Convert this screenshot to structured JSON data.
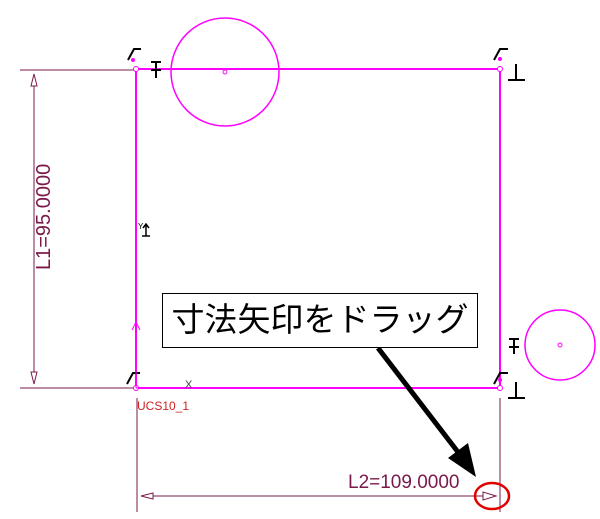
{
  "dimensions": {
    "l1_label": "L1=95.0000",
    "l2_label": "L2=109.0000"
  },
  "ucs_label": "UCS10_1",
  "axis_labels": {
    "x": "X",
    "y": "Y"
  },
  "callout_text": "寸法矢印をドラッグ",
  "colors": {
    "sketch": "#ff00ff",
    "dimension": "#7a1a4a",
    "ucs": "#cc2222",
    "highlight": "#e00000",
    "arrow": "#000000"
  },
  "icons": [
    "constraint-pin-icon",
    "perpendicular-icon",
    "coincident-icon",
    "ucs-axes-icon"
  ]
}
